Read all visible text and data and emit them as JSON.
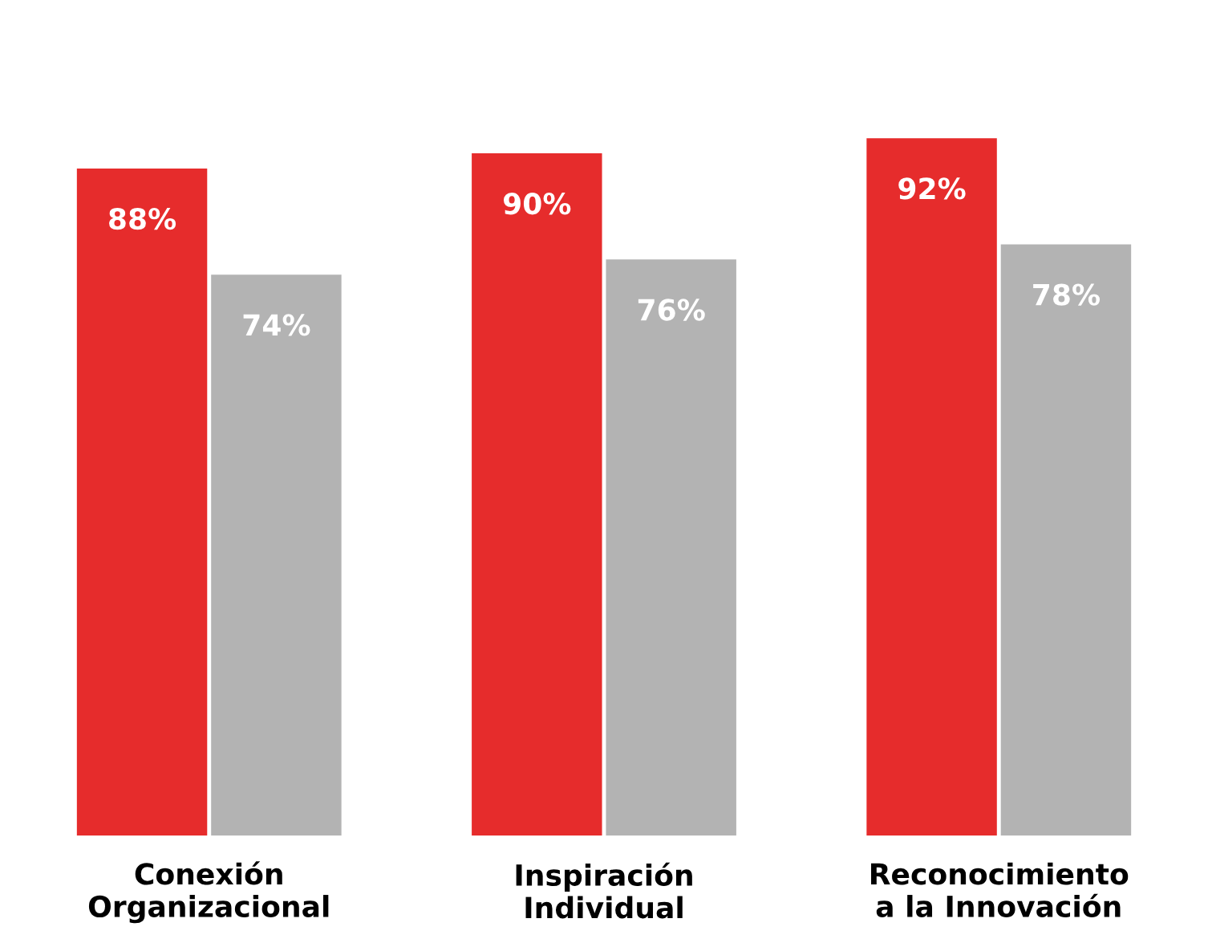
{
  "chart_data": {
    "type": "bar",
    "categories": [
      "Conexión\nOrganizacional",
      "Inspiración\nIndividual",
      "Reconocimiento\na la Innovación"
    ],
    "series": [
      {
        "color": "#e62c2c",
        "values": [
          88,
          90,
          92
        ],
        "value_labels": [
          "88%",
          "90%",
          "92%"
        ]
      },
      {
        "color": "#b3b3b3",
        "values": [
          74,
          76,
          78
        ],
        "value_labels": [
          "74%",
          "76%",
          "78%"
        ]
      }
    ],
    "grid": false,
    "legend": false
  }
}
